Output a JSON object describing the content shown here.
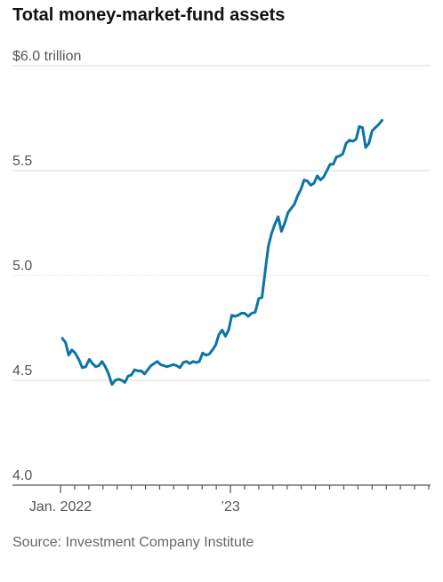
{
  "chart_data": {
    "type": "line",
    "title": "Total money-market-fund assets",
    "source": "Source: Investment Company Institute",
    "xlabel": "",
    "ylabel": "",
    "ylim": [
      4.0,
      6.0
    ],
    "yticks": [
      {
        "value": 6.0,
        "label": "$6.0 trillion"
      },
      {
        "value": 5.5,
        "label": "5.5"
      },
      {
        "value": 5.0,
        "label": "5.0"
      },
      {
        "value": 4.5,
        "label": "4.5"
      },
      {
        "value": 4.0,
        "label": "4.0"
      }
    ],
    "xticks": [
      {
        "month": "2022-01",
        "label": "Jan. 2022"
      },
      {
        "month": "2023-01",
        "label": "’23"
      }
    ],
    "x_start": "2022-01",
    "x_end": "2024-03",
    "line_color": "#0a74a8",
    "grid": true,
    "series": [
      {
        "values": [
          [
            "2022-01-05",
            4.7
          ],
          [
            "2022-01-12",
            4.68
          ],
          [
            "2022-01-19",
            4.62
          ],
          [
            "2022-01-26",
            4.645
          ],
          [
            "2022-02-02",
            4.63
          ],
          [
            "2022-02-09",
            4.6
          ],
          [
            "2022-02-16",
            4.56
          ],
          [
            "2022-02-23",
            4.565
          ],
          [
            "2022-03-02",
            4.6
          ],
          [
            "2022-03-09",
            4.58
          ],
          [
            "2022-03-16",
            4.565
          ],
          [
            "2022-03-23",
            4.57
          ],
          [
            "2022-03-30",
            4.59
          ],
          [
            "2022-04-06",
            4.565
          ],
          [
            "2022-04-13",
            4.53
          ],
          [
            "2022-04-20",
            4.48
          ],
          [
            "2022-04-27",
            4.5
          ],
          [
            "2022-05-04",
            4.505
          ],
          [
            "2022-05-11",
            4.5
          ],
          [
            "2022-05-18",
            4.49
          ],
          [
            "2022-05-25",
            4.52
          ],
          [
            "2022-06-01",
            4.525
          ],
          [
            "2022-06-08",
            4.55
          ],
          [
            "2022-06-15",
            4.545
          ],
          [
            "2022-06-22",
            4.545
          ],
          [
            "2022-06-29",
            4.53
          ],
          [
            "2022-07-06",
            4.55
          ],
          [
            "2022-07-13",
            4.57
          ],
          [
            "2022-07-20",
            4.58
          ],
          [
            "2022-07-27",
            4.59
          ],
          [
            "2022-08-03",
            4.575
          ],
          [
            "2022-08-10",
            4.57
          ],
          [
            "2022-08-17",
            4.565
          ],
          [
            "2022-08-24",
            4.57
          ],
          [
            "2022-08-31",
            4.575
          ],
          [
            "2022-09-07",
            4.57
          ],
          [
            "2022-09-14",
            4.56
          ],
          [
            "2022-09-21",
            4.585
          ],
          [
            "2022-09-28",
            4.59
          ],
          [
            "2022-10-05",
            4.58
          ],
          [
            "2022-10-12",
            4.59
          ],
          [
            "2022-10-19",
            4.585
          ],
          [
            "2022-10-26",
            4.59
          ],
          [
            "2022-11-02",
            4.63
          ],
          [
            "2022-11-09",
            4.62
          ],
          [
            "2022-11-16",
            4.625
          ],
          [
            "2022-11-23",
            4.645
          ],
          [
            "2022-11-30",
            4.67
          ],
          [
            "2022-12-07",
            4.72
          ],
          [
            "2022-12-14",
            4.74
          ],
          [
            "2022-12-21",
            4.71
          ],
          [
            "2022-12-28",
            4.74
          ],
          [
            "2023-01-04",
            4.81
          ],
          [
            "2023-01-11",
            4.805
          ],
          [
            "2023-01-18",
            4.81
          ],
          [
            "2023-01-25",
            4.82
          ],
          [
            "2023-02-01",
            4.82
          ],
          [
            "2023-02-08",
            4.805
          ],
          [
            "2023-02-15",
            4.82
          ],
          [
            "2023-02-22",
            4.825
          ],
          [
            "2023-03-01",
            4.89
          ],
          [
            "2023-03-08",
            4.895
          ],
          [
            "2023-03-15",
            5.02
          ],
          [
            "2023-03-22",
            5.14
          ],
          [
            "2023-03-29",
            5.2
          ],
          [
            "2023-04-05",
            5.245
          ],
          [
            "2023-04-12",
            5.28
          ],
          [
            "2023-04-19",
            5.21
          ],
          [
            "2023-04-26",
            5.25
          ],
          [
            "2023-05-03",
            5.3
          ],
          [
            "2023-05-10",
            5.32
          ],
          [
            "2023-05-17",
            5.34
          ],
          [
            "2023-05-24",
            5.38
          ],
          [
            "2023-05-31",
            5.41
          ],
          [
            "2023-06-07",
            5.455
          ],
          [
            "2023-06-14",
            5.45
          ],
          [
            "2023-06-21",
            5.43
          ],
          [
            "2023-06-28",
            5.44
          ],
          [
            "2023-07-05",
            5.475
          ],
          [
            "2023-07-12",
            5.455
          ],
          [
            "2023-07-19",
            5.47
          ],
          [
            "2023-07-26",
            5.5
          ],
          [
            "2023-08-02",
            5.53
          ],
          [
            "2023-08-09",
            5.53
          ],
          [
            "2023-08-16",
            5.565
          ],
          [
            "2023-08-23",
            5.57
          ],
          [
            "2023-08-30",
            5.58
          ],
          [
            "2023-09-06",
            5.63
          ],
          [
            "2023-09-13",
            5.645
          ],
          [
            "2023-09-20",
            5.64
          ],
          [
            "2023-09-27",
            5.65
          ],
          [
            "2023-10-04",
            5.71
          ],
          [
            "2023-10-11",
            5.705
          ],
          [
            "2023-10-18",
            5.61
          ],
          [
            "2023-10-25",
            5.63
          ],
          [
            "2023-11-01",
            5.69
          ],
          [
            "2023-11-08",
            5.705
          ],
          [
            "2023-11-15",
            5.72
          ],
          [
            "2023-11-22",
            5.74
          ]
        ]
      }
    ]
  }
}
